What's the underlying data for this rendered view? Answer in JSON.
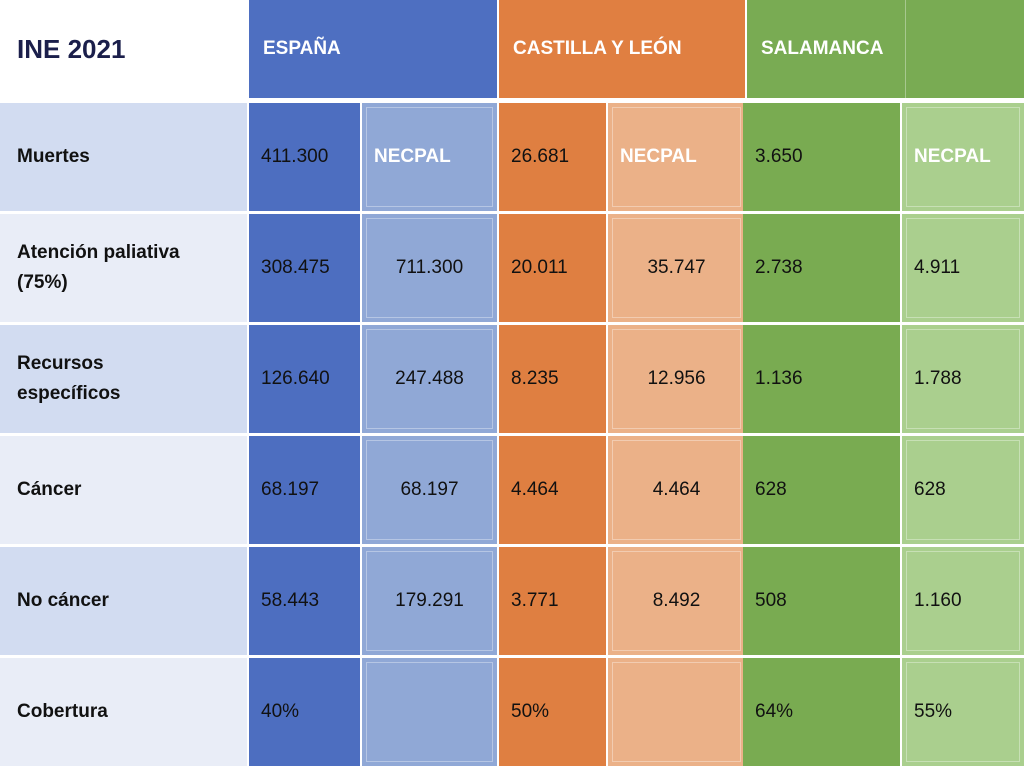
{
  "title": "INE 2021",
  "regions": {
    "espana": "ESPAÑA",
    "castilla": "CASTILLA Y LEÓN",
    "salamanca": "SALAMANCA"
  },
  "rows": [
    {
      "label": "Muertes",
      "values": [
        "411.300",
        "NECPAL",
        "26.681",
        "NECPAL",
        "3.650",
        "NECPAL"
      ]
    },
    {
      "label": "Atención paliativa\n(75%)",
      "values": [
        "308.475",
        "711.300",
        "20.011",
        "35.747",
        "2.738",
        "4.911"
      ]
    },
    {
      "label": "Recursos\nespecíficos",
      "values": [
        "126.640",
        "247.488",
        "8.235",
        "12.956",
        "1.136",
        "1.788"
      ]
    },
    {
      "label": "Cáncer",
      "values": [
        "68.197",
        "68.197",
        "4.464",
        "4.464",
        "628",
        "628"
      ]
    },
    {
      "label": "No cáncer",
      "values": [
        "58.443",
        "179.291",
        "3.771",
        "8.492",
        "508",
        "1.160"
      ]
    },
    {
      "label": "Cobertura",
      "values": [
        "40%",
        "",
        "50%",
        "",
        "64%",
        "55%"
      ]
    }
  ],
  "colors": {
    "espana_dark": "#4d6ec0",
    "espana_light": "#90a8d6",
    "castilla_dark": "#df7f41",
    "castilla_light": "#ebb188",
    "salamanca_dark": "#79ab51",
    "salamanca_light": "#aacf8e",
    "label_band": "#d2dcf1",
    "title_text": "#1b1f4b"
  }
}
